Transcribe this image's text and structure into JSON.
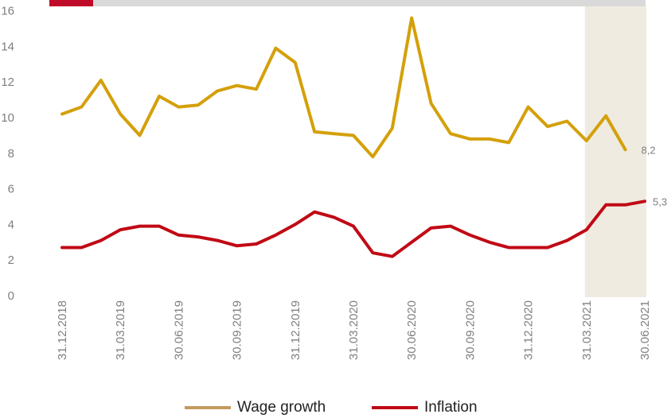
{
  "chart_data": {
    "type": "line",
    "x_tick_labels": [
      "31.12.2018",
      "31.03.2019",
      "30.06.2019",
      "30.09.2019",
      "31.12.2019",
      "31.03.2020",
      "30.06.2020",
      "30.09.2020",
      "31.12.2020",
      "31.03.2021",
      "30.06.2021"
    ],
    "ylim": [
      0,
      16
    ],
    "yticks": [
      0,
      2,
      4,
      6,
      8,
      10,
      12,
      14,
      16
    ],
    "grid": false,
    "legend_position": "bottom",
    "highlight_region": {
      "from_index": 27,
      "to_index": 30,
      "color": "#efebe1"
    },
    "series": [
      {
        "name": "Wage growth",
        "color": "#d4a00a",
        "legend_color": "#c59a5e",
        "values": [
          10.2,
          10.6,
          12.1,
          10.2,
          9.0,
          11.2,
          10.6,
          10.7,
          11.5,
          11.8,
          11.6,
          13.9,
          13.1,
          9.2,
          9.1,
          9.0,
          7.8,
          9.4,
          15.6,
          10.8,
          9.1,
          8.8,
          8.8,
          8.6,
          10.6,
          9.5,
          9.8,
          8.7,
          10.1,
          8.2
        ],
        "end_label": "8,2"
      },
      {
        "name": "Inflation",
        "color": "#c00a15",
        "legend_color": "#c00a15",
        "values": [
          2.7,
          2.7,
          3.1,
          3.7,
          3.9,
          3.9,
          3.4,
          3.3,
          3.1,
          2.8,
          2.9,
          3.4,
          4.0,
          4.7,
          4.4,
          3.9,
          2.4,
          2.2,
          3.0,
          3.8,
          3.9,
          3.4,
          3.0,
          2.7,
          2.7,
          2.7,
          3.1,
          3.7,
          5.1,
          5.1,
          5.3
        ],
        "end_label": "5,3"
      }
    ]
  },
  "legend": {
    "wage_label": "Wage growth",
    "inflation_label": "Inflation"
  },
  "decor": {
    "top_bar_red": "#c00a2a",
    "top_bar_gray": "#d9d9d9"
  }
}
